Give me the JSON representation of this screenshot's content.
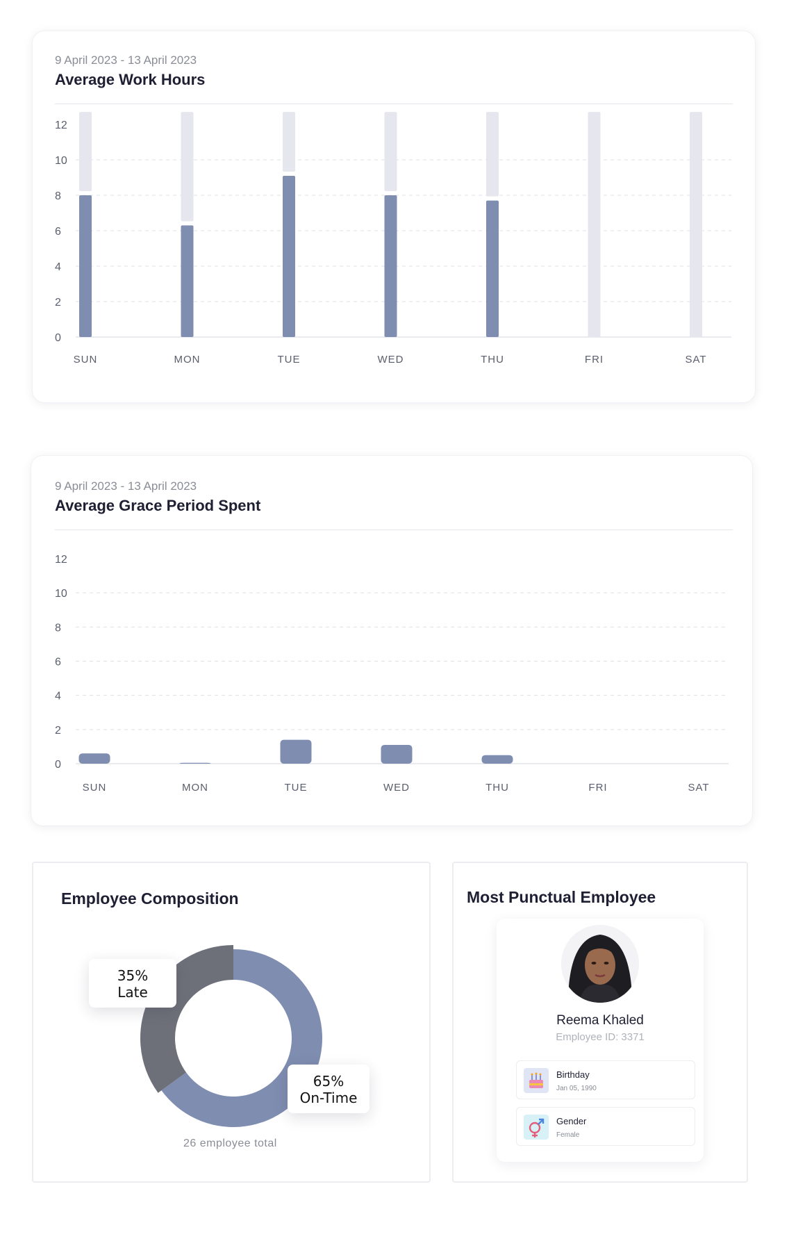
{
  "work_hours": {
    "date_range": "9 April 2023 - 13 April 2023",
    "title": "Average Work Hours"
  },
  "grace_period": {
    "date_range": "9 April 2023 - 13 April 2023",
    "title": "Average Grace Period Spent"
  },
  "chart_data": [
    {
      "type": "bar",
      "title": "Average Work Hours",
      "categories": [
        "SUN",
        "MON",
        "TUE",
        "WED",
        "THU",
        "FRI",
        "SAT"
      ],
      "y_ticks": [
        "0",
        "2",
        "4",
        "6",
        "8",
        "10",
        "12"
      ],
      "ylim": [
        0,
        12
      ],
      "stacked": true,
      "series": [
        {
          "values": [
            8.0,
            6.3,
            9.1,
            8.0,
            7.7,
            0,
            0
          ],
          "color": "#7f8db1"
        },
        {
          "values": [
            4.7,
            6.4,
            3.6,
            4.7,
            5.0,
            12.7,
            12.7
          ],
          "color": "#e6e6ef"
        }
      ],
      "grid": "dashed horizontal"
    },
    {
      "type": "bar",
      "title": "Average Grace Period Spent",
      "categories": [
        "SUN",
        "MON",
        "TUE",
        "WED",
        "THU",
        "FRI",
        "SAT"
      ],
      "y_ticks": [
        "0",
        "2",
        "4",
        "6",
        "8",
        "10",
        "12"
      ],
      "ylim": [
        0,
        12
      ],
      "series": [
        {
          "values": [
            0.6,
            0.05,
            1.4,
            1.1,
            0.5,
            0,
            0
          ],
          "color": "#7f8db1"
        }
      ],
      "grid": "dashed horizontal"
    },
    {
      "type": "pie",
      "title": "Employee Composition",
      "categories": [
        "Late",
        "On-Time"
      ],
      "values": [
        35,
        65
      ],
      "labels": [
        "35%",
        "65%"
      ],
      "colors": [
        "#6e7079",
        "#7f8db1"
      ]
    }
  ],
  "composition": {
    "title": "Employee Composition",
    "late_pct": "35%",
    "late_label": "Late",
    "ontime_pct": "65%",
    "ontime_label": "On-Time",
    "total": "26 employee total"
  },
  "punctual": {
    "title": "Most Punctual Employee",
    "name": "Reema Khaled",
    "employee_id": "Employee ID: 3371",
    "birthday_label": "Birthday",
    "birthday_value": "Jan 05, 1990",
    "gender_label": "Gender",
    "gender_value": "Female",
    "birthday_icon": "cake-icon",
    "gender_icon": "gender-icon"
  }
}
